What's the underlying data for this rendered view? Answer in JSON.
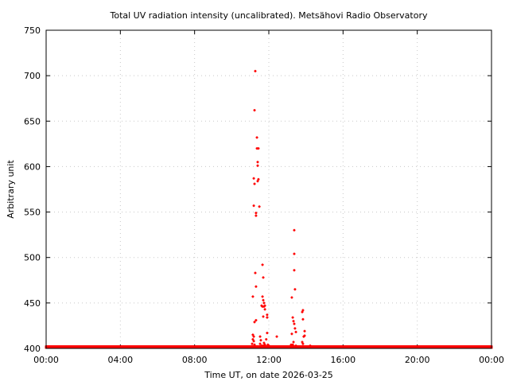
{
  "chart_data": {
    "type": "scatter",
    "title": "Total UV radiation intensity (uncalibrated). Metsähovi Radio Observatory",
    "xlabel": "Time UT, on date 2026-03-25",
    "ylabel": "Arbitrary unit",
    "xlim": [
      0,
      24
    ],
    "ylim": [
      400,
      750
    ],
    "x_unit": "hours",
    "xticks": [
      0,
      4,
      8,
      12,
      16,
      20,
      24
    ],
    "xtick_labels": [
      "00:00",
      "04:00",
      "08:00",
      "12:00",
      "16:00",
      "20:00",
      "00:00"
    ],
    "yticks": [
      400,
      450,
      500,
      550,
      600,
      650,
      700,
      750
    ],
    "ytick_labels": [
      "400",
      "450",
      "500",
      "550",
      "600",
      "650",
      "700",
      "750"
    ],
    "grid": true,
    "color": "#ff0000",
    "baseline": {
      "x_start": 0,
      "x_end": 24,
      "step_hours": 0.02,
      "value": 401
    },
    "points": [
      [
        11.27,
        705
      ],
      [
        11.23,
        662
      ],
      [
        11.36,
        632
      ],
      [
        11.36,
        620
      ],
      [
        11.44,
        620
      ],
      [
        11.4,
        605
      ],
      [
        11.4,
        601
      ],
      [
        11.44,
        586
      ],
      [
        11.4,
        584
      ],
      [
        11.19,
        587
      ],
      [
        11.23,
        581
      ],
      [
        11.19,
        557
      ],
      [
        11.49,
        556
      ],
      [
        11.31,
        549
      ],
      [
        11.31,
        546
      ],
      [
        11.66,
        492
      ],
      [
        11.7,
        478
      ],
      [
        11.27,
        483
      ],
      [
        11.31,
        468
      ],
      [
        11.14,
        457
      ],
      [
        11.66,
        457
      ],
      [
        11.7,
        453
      ],
      [
        11.74,
        450
      ],
      [
        11.61,
        447
      ],
      [
        11.66,
        446
      ],
      [
        11.74,
        446
      ],
      [
        11.79,
        447
      ],
      [
        11.79,
        443
      ],
      [
        11.91,
        437
      ],
      [
        11.91,
        434
      ],
      [
        11.7,
        435
      ],
      [
        11.31,
        431
      ],
      [
        11.23,
        429
      ],
      [
        11.14,
        415
      ],
      [
        11.19,
        413
      ],
      [
        11.14,
        410
      ],
      [
        11.19,
        408
      ],
      [
        11.1,
        405
      ],
      [
        11.23,
        404
      ],
      [
        11.53,
        413
      ],
      [
        11.57,
        409
      ],
      [
        11.53,
        405
      ],
      [
        11.61,
        403
      ],
      [
        11.74,
        406
      ],
      [
        11.79,
        404
      ],
      [
        11.86,
        410
      ],
      [
        11.91,
        417
      ],
      [
        11.95,
        404
      ],
      [
        12.0,
        403
      ],
      [
        11.7,
        403
      ],
      [
        12.43,
        413
      ],
      [
        13.37,
        530
      ],
      [
        13.37,
        504
      ],
      [
        13.37,
        486
      ],
      [
        13.41,
        465
      ],
      [
        13.24,
        456
      ],
      [
        13.29,
        434
      ],
      [
        13.33,
        430
      ],
      [
        13.37,
        427
      ],
      [
        13.41,
        422
      ],
      [
        13.46,
        418
      ],
      [
        13.24,
        416
      ],
      [
        13.84,
        442
      ],
      [
        13.8,
        440
      ],
      [
        13.84,
        432
      ],
      [
        13.93,
        419
      ],
      [
        13.93,
        414
      ],
      [
        13.88,
        413
      ],
      [
        13.8,
        407
      ],
      [
        13.84,
        405
      ],
      [
        13.33,
        407
      ],
      [
        13.29,
        404
      ],
      [
        13.2,
        404
      ],
      [
        13.46,
        403
      ],
      [
        14.23,
        403
      ]
    ]
  }
}
